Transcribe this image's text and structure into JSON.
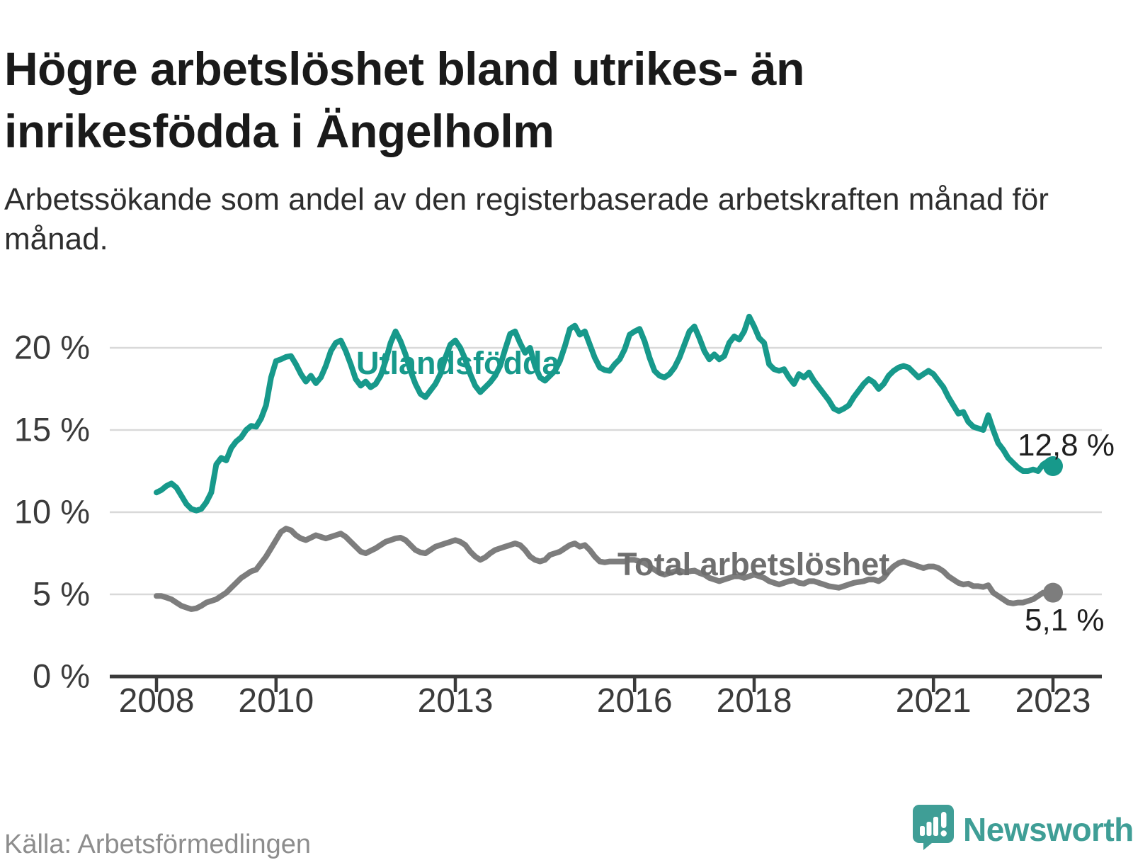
{
  "chart": {
    "title": "Högre arbetslöshet bland utrikes- än inrikesfödda i Ängelholm",
    "subtitle": "Arbetssökande som andel av den registerbaserade arbetskraften månad för månad.",
    "source": "Källa: Arbetsförmedlingen",
    "brand": "Newsworthy"
  },
  "chart_data": {
    "type": "line",
    "title": "Högre arbetslöshet bland utrikes- än inrikesfödda i Ängelholm",
    "x_unit": "month",
    "x_start": "2008-01",
    "x_end": "2023-01",
    "xlabel": "",
    "ylabel": "",
    "ylim": [
      0,
      22.5
    ],
    "grid": true,
    "grid_color": "#d9d9d9",
    "axis_color": "#3a3a3a",
    "xticks": [
      2008,
      2010,
      2013,
      2016,
      2018,
      2021,
      2023
    ],
    "yticks": [
      {
        "value": 0,
        "label": "0 %"
      },
      {
        "value": 5,
        "label": "5 %"
      },
      {
        "value": 10,
        "label": "10 %"
      },
      {
        "value": 15,
        "label": "15 %"
      },
      {
        "value": 20,
        "label": "20 %"
      }
    ],
    "series": [
      {
        "name": "Utlandsfödda",
        "color": "#17998b",
        "end_label": "12,8 %",
        "end_value": 12.8,
        "values": [
          11.2,
          11.35,
          11.6,
          11.75,
          11.5,
          11.0,
          10.5,
          10.2,
          10.1,
          10.2,
          10.6,
          11.2,
          12.9,
          13.3,
          13.15,
          13.9,
          14.3,
          14.55,
          15.0,
          15.25,
          15.2,
          15.7,
          16.5,
          18.2,
          19.2,
          19.3,
          19.45,
          19.5,
          19.0,
          18.4,
          17.95,
          18.3,
          17.85,
          18.2,
          18.9,
          19.8,
          20.3,
          20.45,
          19.8,
          19.0,
          18.1,
          17.7,
          17.95,
          17.6,
          17.8,
          18.3,
          19.2,
          20.3,
          21.0,
          20.4,
          19.6,
          18.6,
          17.8,
          17.2,
          17.0,
          17.4,
          17.8,
          18.4,
          19.4,
          20.2,
          20.45,
          20.0,
          19.3,
          18.4,
          17.7,
          17.3,
          17.6,
          17.9,
          18.3,
          18.9,
          19.9,
          20.85,
          21.0,
          20.3,
          19.7,
          20.0,
          18.9,
          18.2,
          18.0,
          18.3,
          18.6,
          19.2,
          20.1,
          21.15,
          21.35,
          20.8,
          21.0,
          20.2,
          19.4,
          18.8,
          18.65,
          18.6,
          19.0,
          19.3,
          19.9,
          20.8,
          21.0,
          21.15,
          20.4,
          19.4,
          18.6,
          18.3,
          18.2,
          18.4,
          18.8,
          19.4,
          20.2,
          21.0,
          21.3,
          20.6,
          19.8,
          19.3,
          19.6,
          19.3,
          19.5,
          20.3,
          20.7,
          20.5,
          21.0,
          21.9,
          21.3,
          20.6,
          20.3,
          19.0,
          18.7,
          18.6,
          18.7,
          18.2,
          17.8,
          18.4,
          18.2,
          18.5,
          18.0,
          17.6,
          17.2,
          16.8,
          16.3,
          16.15,
          16.3,
          16.5,
          17.0,
          17.4,
          17.8,
          18.1,
          17.9,
          17.5,
          17.8,
          18.3,
          18.6,
          18.8,
          18.9,
          18.8,
          18.5,
          18.2,
          18.4,
          18.6,
          18.4,
          18.0,
          17.6,
          17.0,
          16.5,
          16.0,
          16.1,
          15.5,
          15.2,
          15.1,
          15.0,
          15.9,
          15.0,
          14.2,
          13.8,
          13.3,
          13.0,
          12.7,
          12.5,
          12.5,
          12.6,
          12.5,
          12.9,
          13.1,
          12.8
        ]
      },
      {
        "name": "Total arbetslöshet",
        "color": "#7d7d7d",
        "end_label": "5,1 %",
        "end_value": 5.1,
        "values": [
          4.9,
          4.9,
          4.8,
          4.7,
          4.5,
          4.3,
          4.2,
          4.1,
          4.15,
          4.3,
          4.5,
          4.6,
          4.7,
          4.9,
          5.1,
          5.4,
          5.7,
          6.0,
          6.2,
          6.4,
          6.5,
          6.9,
          7.3,
          7.8,
          8.3,
          8.8,
          9.0,
          8.9,
          8.6,
          8.4,
          8.3,
          8.45,
          8.6,
          8.5,
          8.4,
          8.5,
          8.6,
          8.7,
          8.5,
          8.2,
          7.9,
          7.6,
          7.5,
          7.65,
          7.8,
          8.0,
          8.2,
          8.3,
          8.4,
          8.45,
          8.3,
          8.0,
          7.7,
          7.55,
          7.5,
          7.7,
          7.9,
          8.0,
          8.1,
          8.2,
          8.3,
          8.2,
          8.0,
          7.6,
          7.3,
          7.1,
          7.25,
          7.5,
          7.7,
          7.8,
          7.9,
          8.0,
          8.1,
          8.0,
          7.7,
          7.3,
          7.1,
          7.0,
          7.1,
          7.4,
          7.5,
          7.6,
          7.8,
          8.0,
          8.1,
          7.9,
          8.0,
          7.7,
          7.3,
          7.0,
          6.95,
          7.0,
          7.0,
          7.0,
          7.0,
          7.1,
          7.1,
          7.0,
          6.9,
          6.7,
          6.5,
          6.3,
          6.2,
          6.3,
          6.4,
          6.45,
          6.35,
          6.4,
          6.45,
          6.3,
          6.2,
          6.0,
          5.9,
          5.8,
          5.9,
          6.0,
          6.1,
          6.1,
          6.0,
          6.1,
          6.2,
          6.1,
          6.0,
          5.8,
          5.7,
          5.6,
          5.7,
          5.8,
          5.85,
          5.7,
          5.65,
          5.8,
          5.8,
          5.7,
          5.6,
          5.5,
          5.45,
          5.4,
          5.5,
          5.6,
          5.7,
          5.75,
          5.8,
          5.9,
          5.9,
          5.8,
          6.0,
          6.4,
          6.7,
          6.9,
          7.0,
          6.9,
          6.8,
          6.7,
          6.6,
          6.7,
          6.7,
          6.6,
          6.4,
          6.1,
          5.9,
          5.7,
          5.6,
          5.65,
          5.5,
          5.5,
          5.45,
          5.55,
          5.1,
          4.9,
          4.7,
          4.5,
          4.45,
          4.5,
          4.5,
          4.6,
          4.7,
          4.9,
          5.1,
          5.0,
          5.1
        ]
      }
    ],
    "annotations": {
      "series0_inline_label": "Utlandsfödda",
      "series1_inline_label": "Total arbetslöshet"
    }
  }
}
